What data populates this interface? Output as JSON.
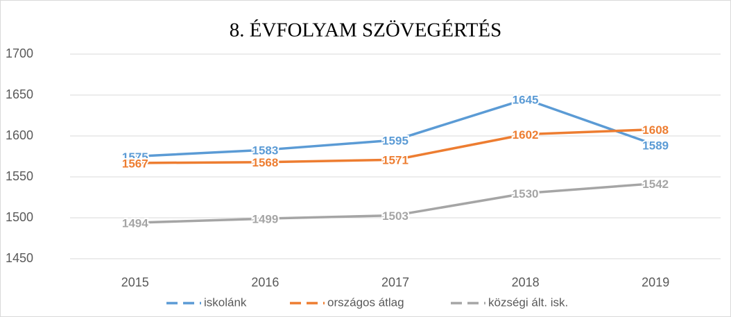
{
  "chart_data": {
    "type": "line",
    "title": "8. ÉVFOLYAM SZÖVEGÉRTÉS",
    "categories": [
      "2015",
      "2016",
      "2017",
      "2018",
      "2019"
    ],
    "series": [
      {
        "name": "iskolánk",
        "color": "#5b9bd5",
        "values": [
          1575,
          1583,
          1595,
          1645,
          1589
        ]
      },
      {
        "name": "országos átlag",
        "color": "#ed7d31",
        "values": [
          1567,
          1568,
          1571,
          1602,
          1608
        ]
      },
      {
        "name": "községi ált. isk.",
        "color": "#a5a5a5",
        "values": [
          1494,
          1499,
          1503,
          1530,
          1542
        ]
      }
    ],
    "ylim": [
      1450,
      1700
    ],
    "yticks": [
      1450,
      1500,
      1550,
      1600,
      1650,
      1700
    ],
    "grid": true,
    "legend": "bottom"
  }
}
